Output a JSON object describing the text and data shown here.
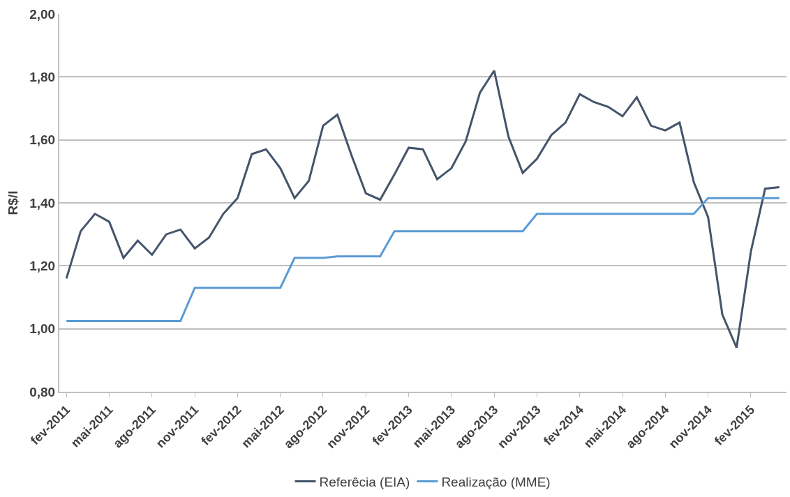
{
  "chart_data": {
    "type": "line",
    "ylabel": "R$/l",
    "categories": [
      "fev-2011",
      null,
      null,
      "mai-2011",
      null,
      null,
      "ago-2011",
      null,
      null,
      "nov-2011",
      null,
      null,
      "fev-2012",
      null,
      null,
      "mai-2012",
      null,
      null,
      "ago-2012",
      null,
      null,
      "nov-2012",
      null,
      null,
      "fev-2013",
      null,
      null,
      "mai-2013",
      null,
      null,
      "ago-2013",
      null,
      null,
      "nov-2013",
      null,
      null,
      "fev-2014",
      null,
      null,
      "mai-2014",
      null,
      null,
      "ago-2014",
      null,
      null,
      "nov-2014",
      null,
      null,
      "fev-2015",
      null,
      null
    ],
    "series": [
      {
        "name": "Referêcia (EIA)",
        "color": "#44546a",
        "values": [
          1.16,
          1.31,
          1.365,
          1.34,
          1.225,
          1.28,
          1.235,
          1.3,
          1.315,
          1.255,
          1.29,
          1.365,
          1.415,
          1.555,
          1.57,
          1.51,
          1.415,
          1.47,
          1.645,
          1.68,
          1.55,
          1.43,
          1.41,
          1.49,
          1.575,
          1.57,
          1.475,
          1.51,
          1.595,
          1.75,
          1.82,
          1.61,
          1.495,
          1.54,
          1.615,
          1.655,
          1.745,
          1.72,
          1.705,
          1.675,
          1.735,
          1.645,
          1.63,
          1.655,
          1.465,
          1.355,
          1.045,
          0.94,
          1.245,
          1.445,
          1.45
        ]
      },
      {
        "name": "Realização (MME)",
        "color": "#5b9bd5",
        "values": [
          1.025,
          1.025,
          1.025,
          1.025,
          1.025,
          1.025,
          1.025,
          1.025,
          1.025,
          1.13,
          1.13,
          1.13,
          1.13,
          1.13,
          1.13,
          1.13,
          1.225,
          1.225,
          1.225,
          1.23,
          1.23,
          1.23,
          1.23,
          1.31,
          1.31,
          1.31,
          1.31,
          1.31,
          1.31,
          1.31,
          1.31,
          1.31,
          1.31,
          1.365,
          1.365,
          1.365,
          1.365,
          1.365,
          1.365,
          1.365,
          1.365,
          1.365,
          1.365,
          1.365,
          1.365,
          1.415,
          1.415,
          1.415,
          1.415,
          1.415,
          1.415
        ]
      }
    ],
    "ylim": [
      0.8,
      2.0
    ],
    "yticks": [
      {
        "value": 0.8,
        "label": "0,80"
      },
      {
        "value": 1.0,
        "label": "1,00"
      },
      {
        "value": 1.2,
        "label": "1,20"
      },
      {
        "value": 1.4,
        "label": "1,40"
      },
      {
        "value": 1.6,
        "label": "1,60"
      },
      {
        "value": 1.8,
        "label": "1,80"
      },
      {
        "value": 2.0,
        "label": "2,00"
      }
    ],
    "grid": "y",
    "legend": "bottom",
    "marker": "none",
    "line_style": "solid"
  }
}
